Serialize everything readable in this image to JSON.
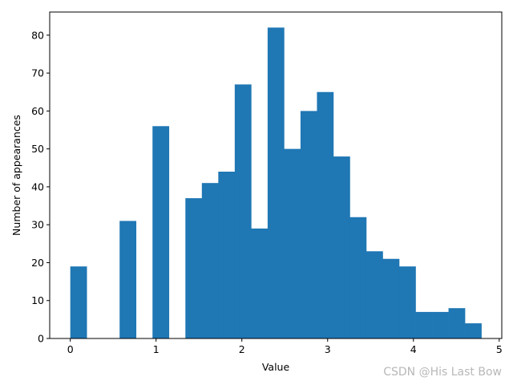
{
  "chart_data": {
    "type": "bar",
    "histogram": true,
    "bin_width": 0.1917,
    "bins": [
      {
        "x0": 0.0,
        "count": 19
      },
      {
        "x0": 0.1917,
        "count": 0
      },
      {
        "x0": 0.3834,
        "count": 0
      },
      {
        "x0": 0.5751,
        "count": 31
      },
      {
        "x0": 0.7668,
        "count": 0
      },
      {
        "x0": 0.9585,
        "count": 56
      },
      {
        "x0": 1.1502,
        "count": 0
      },
      {
        "x0": 1.3419,
        "count": 37
      },
      {
        "x0": 1.5336,
        "count": 41
      },
      {
        "x0": 1.7253,
        "count": 44
      },
      {
        "x0": 1.917,
        "count": 67
      },
      {
        "x0": 2.1087,
        "count": 29
      },
      {
        "x0": 2.3004,
        "count": 82
      },
      {
        "x0": 2.4921,
        "count": 50
      },
      {
        "x0": 2.6838,
        "count": 60
      },
      {
        "x0": 2.8755,
        "count": 65
      },
      {
        "x0": 3.0672,
        "count": 48
      },
      {
        "x0": 3.2589,
        "count": 32
      },
      {
        "x0": 3.4506,
        "count": 23
      },
      {
        "x0": 3.6423,
        "count": 21
      },
      {
        "x0": 3.834,
        "count": 19
      },
      {
        "x0": 4.0257,
        "count": 7
      },
      {
        "x0": 4.2174,
        "count": 7
      },
      {
        "x0": 4.4091,
        "count": 8
      },
      {
        "x0": 4.6008,
        "count": 4
      }
    ],
    "xlabel": "Value",
    "ylabel": "Number of appearances",
    "xlim": [
      -0.24,
      5.03
    ],
    "ylim": [
      0,
      86.1
    ],
    "xticks": [
      0,
      1,
      2,
      3,
      4,
      5
    ],
    "yticks": [
      0,
      10,
      20,
      30,
      40,
      50,
      60,
      70,
      80
    ],
    "bar_color": "#1f77b4",
    "grid": false,
    "legend": "none"
  },
  "watermark": "CSDN @His Last Bow"
}
